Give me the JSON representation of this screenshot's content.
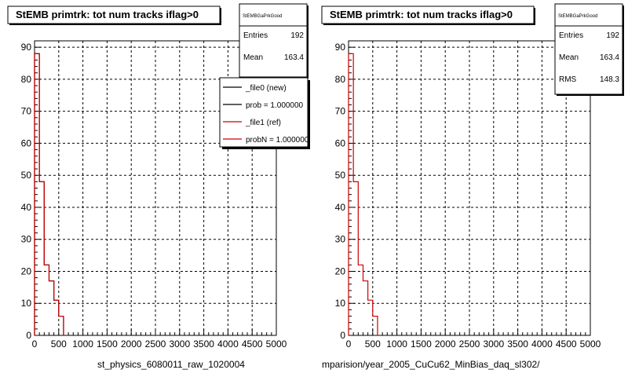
{
  "chart_data": [
    {
      "type": "histogram",
      "title": "StEMB primtrk: tot num tracks iflag>0",
      "xlim": [
        0,
        5000
      ],
      "ylim": [
        0,
        92
      ],
      "x_ticks": [
        "0",
        "500",
        "1000",
        "1500",
        "2000",
        "2500",
        "3000",
        "3500",
        "4000",
        "4500",
        "5000"
      ],
      "y_ticks": [
        "0",
        "10",
        "20",
        "30",
        "40",
        "50",
        "60",
        "70",
        "80",
        "90"
      ],
      "grid": true,
      "bin_width": 100,
      "series": [
        {
          "name": "_file0 (new)",
          "color": "#000000",
          "values": [
            88,
            48,
            22,
            17,
            11,
            6
          ]
        },
        {
          "name": "_file1 (ref)",
          "color": "#cc0000",
          "values": [
            88,
            48,
            22,
            17,
            11,
            6
          ]
        }
      ],
      "stats": {
        "title": "StEMBGaPrkGood",
        "rows": [
          {
            "label": "Entries",
            "value": "192"
          },
          {
            "label": "Mean",
            "value": "163.4"
          }
        ]
      },
      "legend": {
        "placement": "top-right",
        "entries": [
          {
            "label": "_file0 (new)",
            "color": "#000000"
          },
          {
            "label": "prob = 1.000000",
            "color": "#000000"
          },
          {
            "label": "_file1 (ref)",
            "color": "#cc0000"
          },
          {
            "label": "probN = 1.000000",
            "color": "#cc0000"
          }
        ]
      },
      "footer": "st_physics_6080011_raw_1020004"
    },
    {
      "type": "histogram",
      "title": "StEMB primtrk: tot num tracks iflag>0",
      "xlim": [
        0,
        5000
      ],
      "ylim": [
        0,
        92
      ],
      "x_ticks": [
        "0",
        "500",
        "1000",
        "1500",
        "2000",
        "2500",
        "3000",
        "3500",
        "4000",
        "4500",
        "5000"
      ],
      "y_ticks": [
        "0",
        "10",
        "20",
        "30",
        "40",
        "50",
        "60",
        "70",
        "80",
        "90"
      ],
      "grid": true,
      "bin_width": 100,
      "series": [
        {
          "color": "#cc0000",
          "values": [
            88,
            48,
            22,
            17,
            11,
            6
          ]
        }
      ],
      "stats": {
        "title": "StEMBGaPrkGood",
        "rows": [
          {
            "label": "Entries",
            "value": "192"
          },
          {
            "label": "Mean",
            "value": "163.4"
          },
          {
            "label": "RMS",
            "value": "148.3"
          }
        ]
      },
      "footer": "mparision/year_2005_CuCu62_MinBias_daq_sl302/"
    }
  ]
}
